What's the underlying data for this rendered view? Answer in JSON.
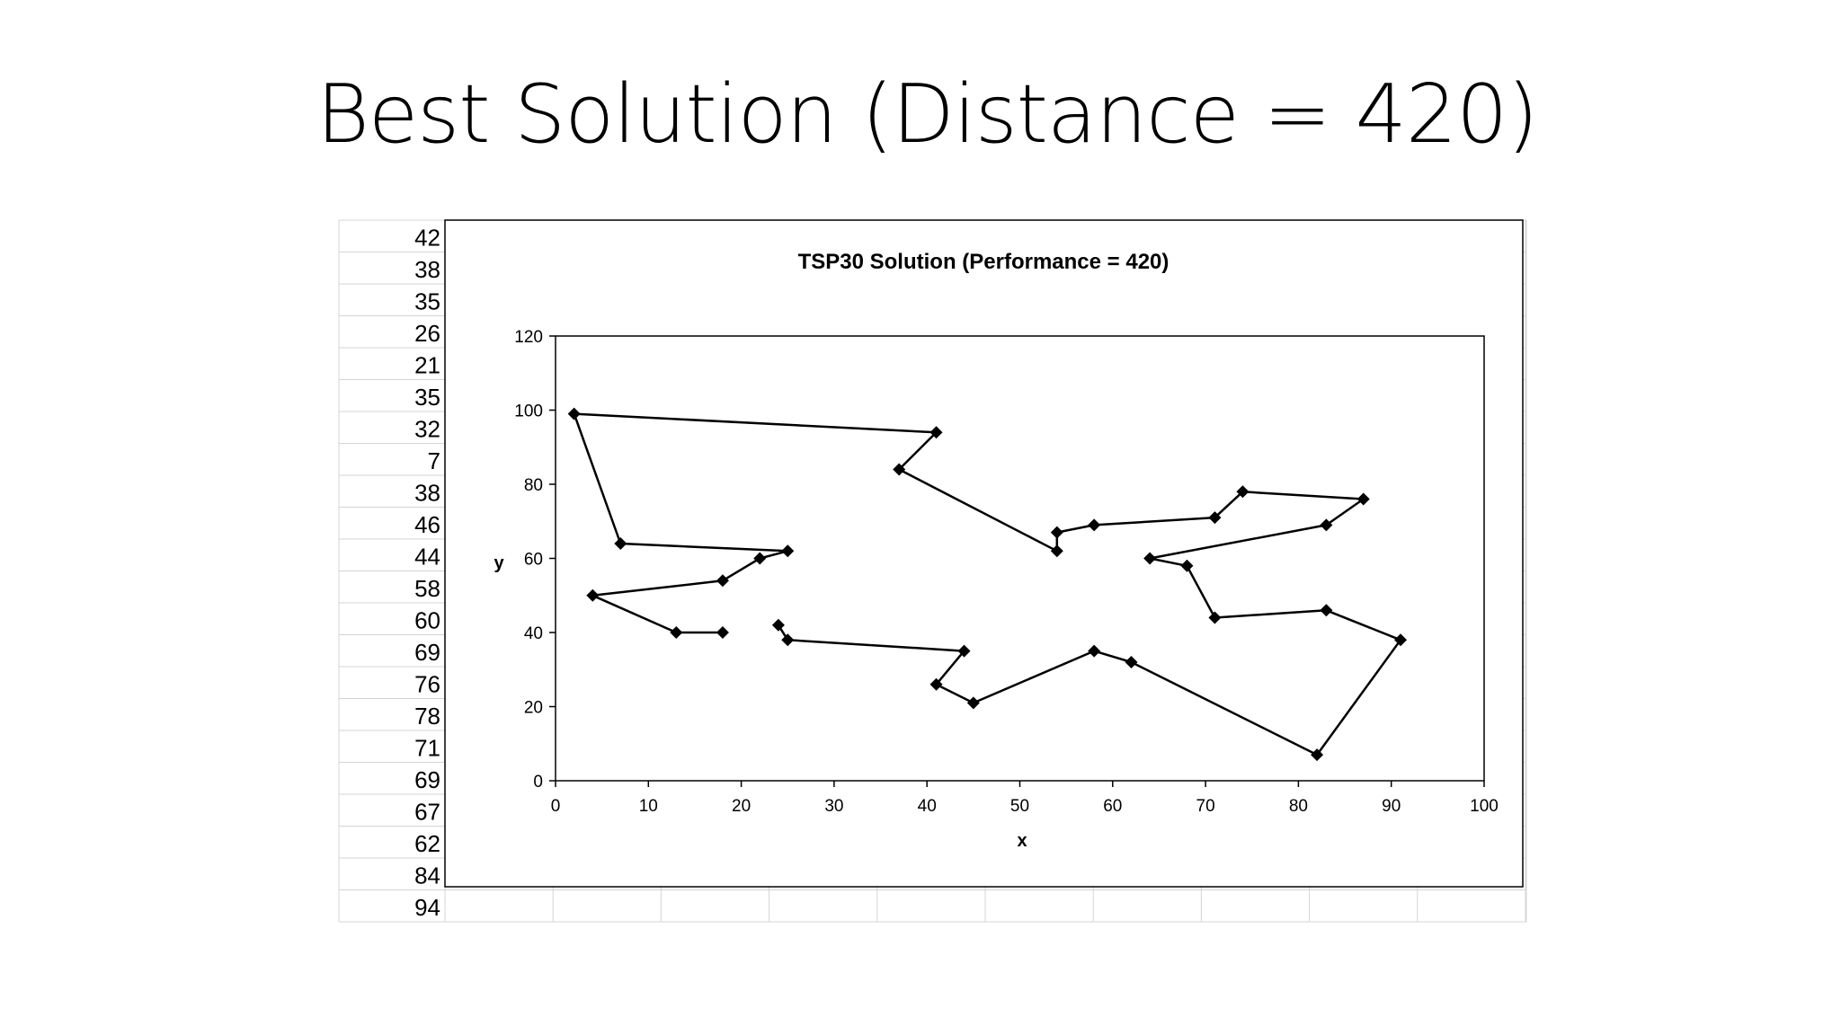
{
  "slide": {
    "title": "Best Solution (Distance = 420)"
  },
  "spreadsheet": {
    "row_values": [
      "42",
      "38",
      "35",
      "26",
      "21",
      "35",
      "32",
      "7",
      "38",
      "46",
      "44",
      "58",
      "60",
      "69",
      "76",
      "78",
      "71",
      "69",
      "67",
      "62",
      "84",
      "94"
    ]
  },
  "chart_data": {
    "type": "line",
    "title": "TSP30 Solution (Performance = 420)",
    "xlabel": "x",
    "ylabel": "y",
    "xlim": [
      0,
      100
    ],
    "ylim": [
      0,
      120
    ],
    "x_ticks": [
      0,
      10,
      20,
      30,
      40,
      50,
      60,
      70,
      80,
      90,
      100
    ],
    "y_ticks": [
      0,
      20,
      40,
      60,
      80,
      100,
      120
    ],
    "grid": false,
    "marker": "diamond",
    "line_color": "#000000",
    "series": [
      {
        "points": [
          [
            18,
            40
          ],
          [
            13,
            40
          ],
          [
            4,
            50
          ],
          [
            18,
            54
          ],
          [
            22,
            60
          ],
          [
            25,
            62
          ],
          [
            7,
            64
          ],
          [
            2,
            99
          ],
          [
            41,
            94
          ],
          [
            37,
            84
          ],
          [
            54,
            62
          ],
          [
            54,
            67
          ],
          [
            58,
            69
          ],
          [
            71,
            71
          ],
          [
            74,
            78
          ],
          [
            87,
            76
          ],
          [
            83,
            69
          ],
          [
            64,
            60
          ],
          [
            68,
            58
          ],
          [
            71,
            44
          ],
          [
            83,
            46
          ],
          [
            91,
            38
          ],
          [
            82,
            7
          ],
          [
            62,
            32
          ],
          [
            58,
            35
          ],
          [
            45,
            21
          ],
          [
            41,
            26
          ],
          [
            44,
            35
          ],
          [
            25,
            38
          ],
          [
            24,
            42
          ]
        ]
      }
    ]
  }
}
